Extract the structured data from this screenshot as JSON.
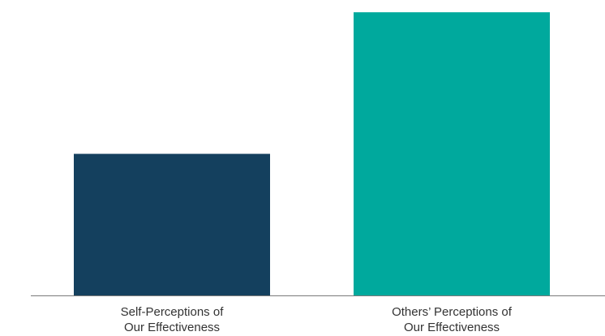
{
  "chart_data": {
    "type": "bar",
    "categories": [
      [
        "Self-Perceptions of",
        "Our Effectiveness"
      ],
      [
        "Others’ Perceptions of",
        "Our Effectiveness"
      ]
    ],
    "values": [
      49,
      98
    ],
    "colors": [
      "#14405e",
      "#00a99d"
    ],
    "ylim": [
      0,
      100
    ],
    "grid": false,
    "legend": "none",
    "axis_color": "#7a7a7a",
    "title": "",
    "xlabel": "",
    "ylabel": ""
  }
}
